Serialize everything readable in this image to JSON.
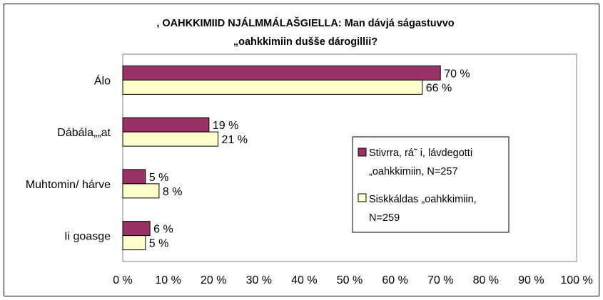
{
  "chart_data": {
    "type": "bar",
    "orientation": "horizontal",
    "title": [
      ", OAHKKIMIID NJÁLMMÁLAŠGIELLA: Man dávjá ságastuvvo",
      "„oahkkimiin dušše dárogillii?"
    ],
    "categories": [
      "Álo",
      "Dábála„„at",
      "Muhtomin/ hárve",
      "Ii goasge"
    ],
    "series": [
      {
        "name": "Stivrra, rá˜ i, lávdegotti „oahkkimiin, N=257",
        "legend_lines": [
          "Stivrra, rá˜ i, lávdegotti",
          "„oahkkimiin, N=257"
        ],
        "values": [
          70,
          19,
          5,
          6
        ],
        "labels": [
          "70 %",
          "19 %",
          "5 %",
          "6 %"
        ],
        "color": "#993366"
      },
      {
        "name": "Siskkáldas „oahkkimiin, N=259",
        "legend_lines": [
          "Siskkáldas „oahkkimiin,",
          "N=259"
        ],
        "values": [
          66,
          21,
          8,
          5
        ],
        "labels": [
          "66 %",
          "21 %",
          "8 %",
          "5 %"
        ],
        "color": "#FFFFCC"
      }
    ],
    "xlim": [
      0,
      100
    ],
    "xticks": [
      "0 %",
      "10 %",
      "20 %",
      "30 %",
      "40 %",
      "50 %",
      "60 %",
      "70 %",
      "80 %",
      "90 %",
      "100 %"
    ],
    "grid": false,
    "legend_position": "right"
  }
}
